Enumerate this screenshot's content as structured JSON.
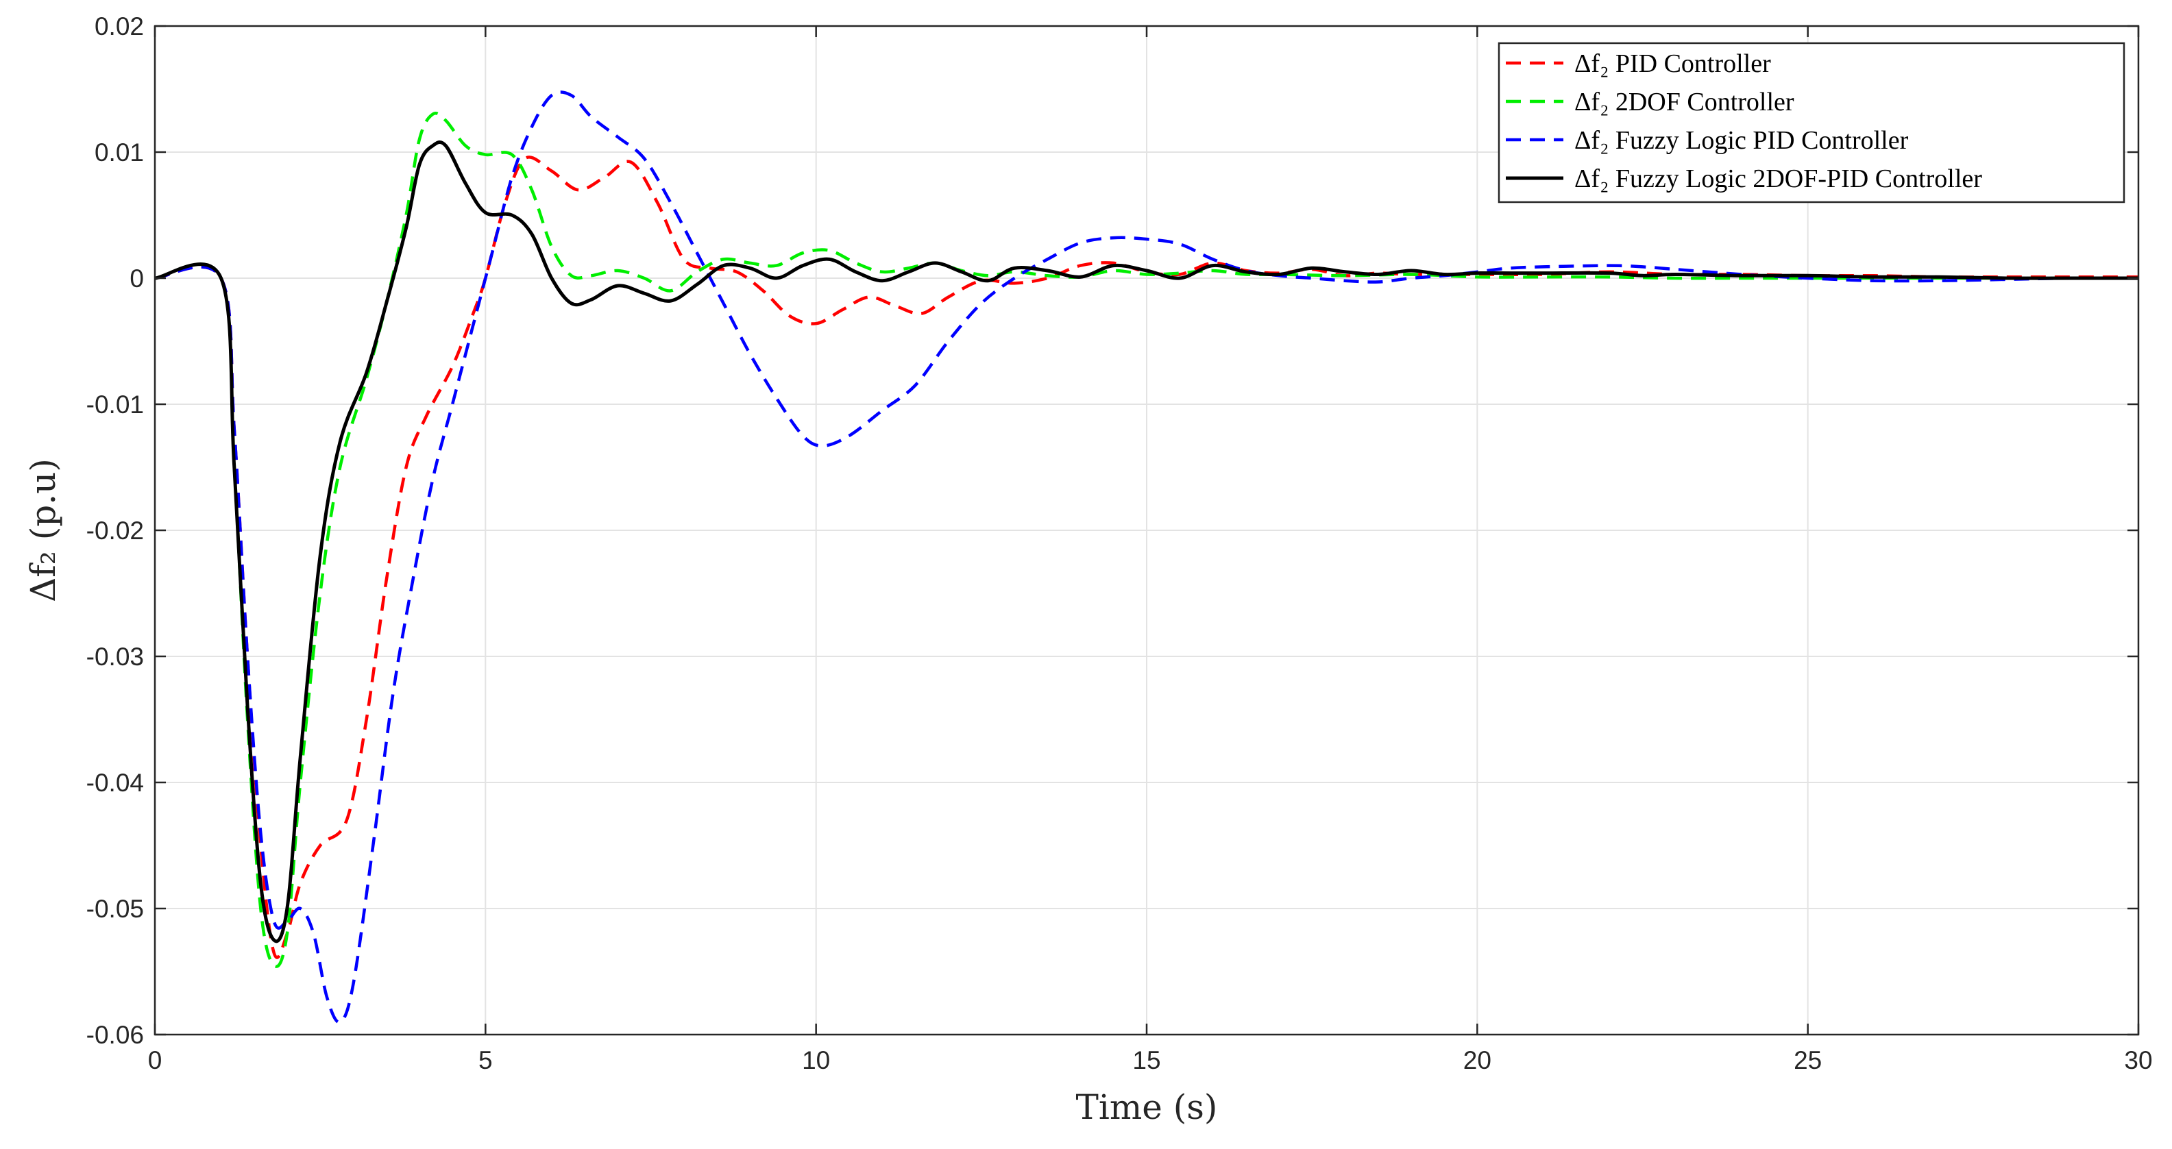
{
  "chart_data": {
    "type": "line",
    "title": "",
    "xlabel": "Time (s)",
    "ylabel": "Δf₂ (p.u)",
    "xlim": [
      0,
      30
    ],
    "ylim": [
      -0.06,
      0.02
    ],
    "xticks": [
      0,
      5,
      10,
      15,
      20,
      25,
      30
    ],
    "yticks": [
      -0.06,
      -0.05,
      -0.04,
      -0.03,
      -0.02,
      -0.01,
      0,
      0.01,
      0.02
    ],
    "xtick_labels": [
      "0",
      "5",
      "10",
      "15",
      "20",
      "25",
      "30"
    ],
    "ytick_labels": [
      "-0.06",
      "-0.05",
      "-0.04",
      "-0.03",
      "-0.02",
      "-0.01",
      "0",
      "0.01",
      "0.02"
    ],
    "grid": true,
    "legend_position": "top-right",
    "series": [
      {
        "name": "Δf₂ PID Controller",
        "color": "#ff0000",
        "dash": "dashed",
        "points": [
          [
            0,
            0
          ],
          [
            1,
            0
          ],
          [
            1.2,
            -0.012
          ],
          [
            1.4,
            -0.03
          ],
          [
            1.6,
            -0.045
          ],
          [
            1.8,
            -0.0535
          ],
          [
            2.0,
            -0.052
          ],
          [
            2.2,
            -0.048
          ],
          [
            2.5,
            -0.045
          ],
          [
            2.9,
            -0.043
          ],
          [
            3.2,
            -0.035
          ],
          [
            3.5,
            -0.024
          ],
          [
            3.8,
            -0.015
          ],
          [
            4.1,
            -0.011
          ],
          [
            4.5,
            -0.007
          ],
          [
            4.8,
            -0.003
          ],
          [
            5.0,
            0.0
          ],
          [
            5.3,
            0.006
          ],
          [
            5.6,
            0.0095
          ],
          [
            6.0,
            0.0085
          ],
          [
            6.4,
            0.007
          ],
          [
            6.8,
            0.008
          ],
          [
            7.2,
            0.0092
          ],
          [
            7.6,
            0.006
          ],
          [
            8.0,
            0.0015
          ],
          [
            8.4,
            0.0008
          ],
          [
            8.8,
            0.0005
          ],
          [
            9.2,
            -0.001
          ],
          [
            9.6,
            -0.003
          ],
          [
            10.0,
            -0.0036
          ],
          [
            10.4,
            -0.0025
          ],
          [
            10.8,
            -0.0015
          ],
          [
            11.2,
            -0.0022
          ],
          [
            11.6,
            -0.0028
          ],
          [
            12.0,
            -0.0015
          ],
          [
            12.5,
            -0.0002
          ],
          [
            13.0,
            -0.0004
          ],
          [
            13.5,
            0.0
          ],
          [
            14.0,
            0.001
          ],
          [
            14.5,
            0.0012
          ],
          [
            15.0,
            0.0005
          ],
          [
            15.5,
            0.0003
          ],
          [
            16.0,
            0.0012
          ],
          [
            16.5,
            0.0006
          ],
          [
            17.0,
            0.0004
          ],
          [
            17.5,
            0.0007
          ],
          [
            18.0,
            0.0002
          ],
          [
            18.5,
            0.0004
          ],
          [
            19.0,
            0.0003
          ],
          [
            20.0,
            0.0003
          ],
          [
            21.0,
            0.0003
          ],
          [
            22.0,
            0.0005
          ],
          [
            23.0,
            0.0003
          ],
          [
            24.0,
            0.0003
          ],
          [
            25.0,
            0.0002
          ],
          [
            26.0,
            0.0002
          ],
          [
            27.0,
            0.0001
          ],
          [
            28.0,
            0.0001
          ],
          [
            29.0,
            0.0001
          ],
          [
            30.0,
            0.0001
          ]
        ]
      },
      {
        "name": "Δf₂ 2DOF Controller",
        "color": "#00ee00",
        "dash": "dashed",
        "points": [
          [
            0,
            0
          ],
          [
            1,
            0
          ],
          [
            1.2,
            -0.015
          ],
          [
            1.4,
            -0.035
          ],
          [
            1.6,
            -0.05
          ],
          [
            1.8,
            -0.0545
          ],
          [
            2.0,
            -0.052
          ],
          [
            2.2,
            -0.04
          ],
          [
            2.5,
            -0.025
          ],
          [
            2.8,
            -0.015
          ],
          [
            3.2,
            -0.008
          ],
          [
            3.5,
            -0.002
          ],
          [
            3.8,
            0.005
          ],
          [
            4.0,
            0.011
          ],
          [
            4.2,
            0.013
          ],
          [
            4.4,
            0.0125
          ],
          [
            4.7,
            0.0105
          ],
          [
            5.0,
            0.0098
          ],
          [
            5.4,
            0.0098
          ],
          [
            5.7,
            0.007
          ],
          [
            6.0,
            0.0025
          ],
          [
            6.3,
            0.0002
          ],
          [
            6.6,
            0.0002
          ],
          [
            7.0,
            0.0006
          ],
          [
            7.4,
            0.0
          ],
          [
            7.8,
            -0.001
          ],
          [
            8.2,
            0.0005
          ],
          [
            8.6,
            0.0015
          ],
          [
            9.0,
            0.0012
          ],
          [
            9.4,
            0.001
          ],
          [
            9.8,
            0.002
          ],
          [
            10.2,
            0.0022
          ],
          [
            10.6,
            0.0012
          ],
          [
            11.0,
            0.0005
          ],
          [
            11.4,
            0.0008
          ],
          [
            11.8,
            0.0012
          ],
          [
            12.2,
            0.0006
          ],
          [
            12.6,
            0.0002
          ],
          [
            13.0,
            0.0005
          ],
          [
            13.5,
            0.0002
          ],
          [
            14.0,
            0.0001
          ],
          [
            14.5,
            0.0006
          ],
          [
            15.0,
            0.0003
          ],
          [
            15.5,
            0.0004
          ],
          [
            16.0,
            0.0006
          ],
          [
            16.5,
            0.0003
          ],
          [
            17.0,
            0.0003
          ],
          [
            18.0,
            0.0002
          ],
          [
            19.0,
            0.0003
          ],
          [
            20.0,
            0.0001
          ],
          [
            21.0,
            0.0001
          ],
          [
            22.0,
            0.0001
          ],
          [
            23.0,
            0.0
          ],
          [
            24.0,
            0.0
          ],
          [
            25.0,
            0.0
          ],
          [
            27.0,
            0.0
          ],
          [
            30.0,
            0.0
          ]
        ]
      },
      {
        "name": "Δf₂ Fuzzy Logic PID Controller",
        "color": "#0000ff",
        "dash": "dashed",
        "points": [
          [
            0,
            0
          ],
          [
            1,
            0
          ],
          [
            1.2,
            -0.012
          ],
          [
            1.4,
            -0.03
          ],
          [
            1.6,
            -0.044
          ],
          [
            1.8,
            -0.051
          ],
          [
            2.0,
            -0.051
          ],
          [
            2.2,
            -0.05
          ],
          [
            2.4,
            -0.052
          ],
          [
            2.6,
            -0.057
          ],
          [
            2.8,
            -0.059
          ],
          [
            3.0,
            -0.056
          ],
          [
            3.3,
            -0.045
          ],
          [
            3.6,
            -0.033
          ],
          [
            3.9,
            -0.024
          ],
          [
            4.2,
            -0.016
          ],
          [
            4.5,
            -0.01
          ],
          [
            4.8,
            -0.004
          ],
          [
            5.1,
            0.002
          ],
          [
            5.4,
            0.008
          ],
          [
            5.7,
            0.012
          ],
          [
            6.0,
            0.0145
          ],
          [
            6.3,
            0.0145
          ],
          [
            6.6,
            0.0128
          ],
          [
            7.0,
            0.0112
          ],
          [
            7.4,
            0.0095
          ],
          [
            7.8,
            0.006
          ],
          [
            8.2,
            0.002
          ],
          [
            8.6,
            -0.002
          ],
          [
            9.0,
            -0.006
          ],
          [
            9.4,
            -0.0095
          ],
          [
            9.8,
            -0.0125
          ],
          [
            10.1,
            -0.0133
          ],
          [
            10.5,
            -0.0125
          ],
          [
            11.0,
            -0.0105
          ],
          [
            11.5,
            -0.0085
          ],
          [
            12.0,
            -0.005
          ],
          [
            12.5,
            -0.002
          ],
          [
            13.0,
            0.0
          ],
          [
            13.5,
            0.0015
          ],
          [
            14.0,
            0.0028
          ],
          [
            14.5,
            0.0032
          ],
          [
            15.0,
            0.0031
          ],
          [
            15.5,
            0.0027
          ],
          [
            16.0,
            0.0015
          ],
          [
            16.5,
            0.0006
          ],
          [
            17.0,
            0.0002
          ],
          [
            17.5,
            0.0
          ],
          [
            18.0,
            -0.0002
          ],
          [
            18.5,
            -0.0003
          ],
          [
            19.0,
            0.0
          ],
          [
            19.5,
            0.0002
          ],
          [
            20.0,
            0.0005
          ],
          [
            20.5,
            0.0008
          ],
          [
            21.0,
            0.0009
          ],
          [
            22.0,
            0.001
          ],
          [
            22.5,
            0.0009
          ],
          [
            23.0,
            0.0007
          ],
          [
            24.0,
            0.0003
          ],
          [
            25.0,
            0.0
          ],
          [
            26.0,
            -0.0002
          ],
          [
            27.0,
            -0.0002
          ],
          [
            28.0,
            -0.0001
          ],
          [
            29.0,
            0.0
          ],
          [
            30.0,
            0.0
          ]
        ]
      },
      {
        "name": "Δf₂ Fuzzy Logic 2DOF-PID Controller",
        "color": "#000000",
        "dash": "solid",
        "points": [
          [
            0,
            0
          ],
          [
            1,
            0
          ],
          [
            1.2,
            -0.015
          ],
          [
            1.4,
            -0.034
          ],
          [
            1.6,
            -0.048
          ],
          [
            1.8,
            -0.0525
          ],
          [
            2.0,
            -0.05
          ],
          [
            2.2,
            -0.038
          ],
          [
            2.5,
            -0.022
          ],
          [
            2.8,
            -0.013
          ],
          [
            3.2,
            -0.0075
          ],
          [
            3.5,
            -0.002
          ],
          [
            3.8,
            0.004
          ],
          [
            4.0,
            0.009
          ],
          [
            4.2,
            0.0105
          ],
          [
            4.4,
            0.0105
          ],
          [
            4.7,
            0.0075
          ],
          [
            5.0,
            0.0052
          ],
          [
            5.4,
            0.005
          ],
          [
            5.7,
            0.0035
          ],
          [
            6.0,
            0.0
          ],
          [
            6.3,
            -0.002
          ],
          [
            6.6,
            -0.0017
          ],
          [
            7.0,
            -0.0006
          ],
          [
            7.4,
            -0.0012
          ],
          [
            7.8,
            -0.0018
          ],
          [
            8.2,
            -0.0005
          ],
          [
            8.6,
            0.001
          ],
          [
            9.0,
            0.0008
          ],
          [
            9.4,
            0.0
          ],
          [
            9.8,
            0.001
          ],
          [
            10.2,
            0.0015
          ],
          [
            10.6,
            0.0005
          ],
          [
            11.0,
            -0.0002
          ],
          [
            11.4,
            0.0005
          ],
          [
            11.8,
            0.0012
          ],
          [
            12.2,
            0.0005
          ],
          [
            12.6,
            -0.0002
          ],
          [
            13.0,
            0.0008
          ],
          [
            13.5,
            0.0006
          ],
          [
            14.0,
            0.0001
          ],
          [
            14.5,
            0.001
          ],
          [
            15.0,
            0.0006
          ],
          [
            15.5,
            0.0
          ],
          [
            16.0,
            0.001
          ],
          [
            16.5,
            0.0005
          ],
          [
            17.0,
            0.0003
          ],
          [
            17.5,
            0.0008
          ],
          [
            18.0,
            0.0005
          ],
          [
            18.5,
            0.0003
          ],
          [
            19.0,
            0.0006
          ],
          [
            19.5,
            0.0003
          ],
          [
            20.0,
            0.0004
          ],
          [
            20.5,
            0.0004
          ],
          [
            21.0,
            0.0004
          ],
          [
            22.0,
            0.0004
          ],
          [
            22.5,
            0.0002
          ],
          [
            23.0,
            0.0003
          ],
          [
            24.0,
            0.0002
          ],
          [
            25.0,
            0.0002
          ],
          [
            26.0,
            0.0001
          ],
          [
            27.0,
            0.0001
          ],
          [
            28.0,
            0.0
          ],
          [
            29.0,
            0.0
          ],
          [
            30.0,
            0.0
          ]
        ]
      }
    ]
  }
}
